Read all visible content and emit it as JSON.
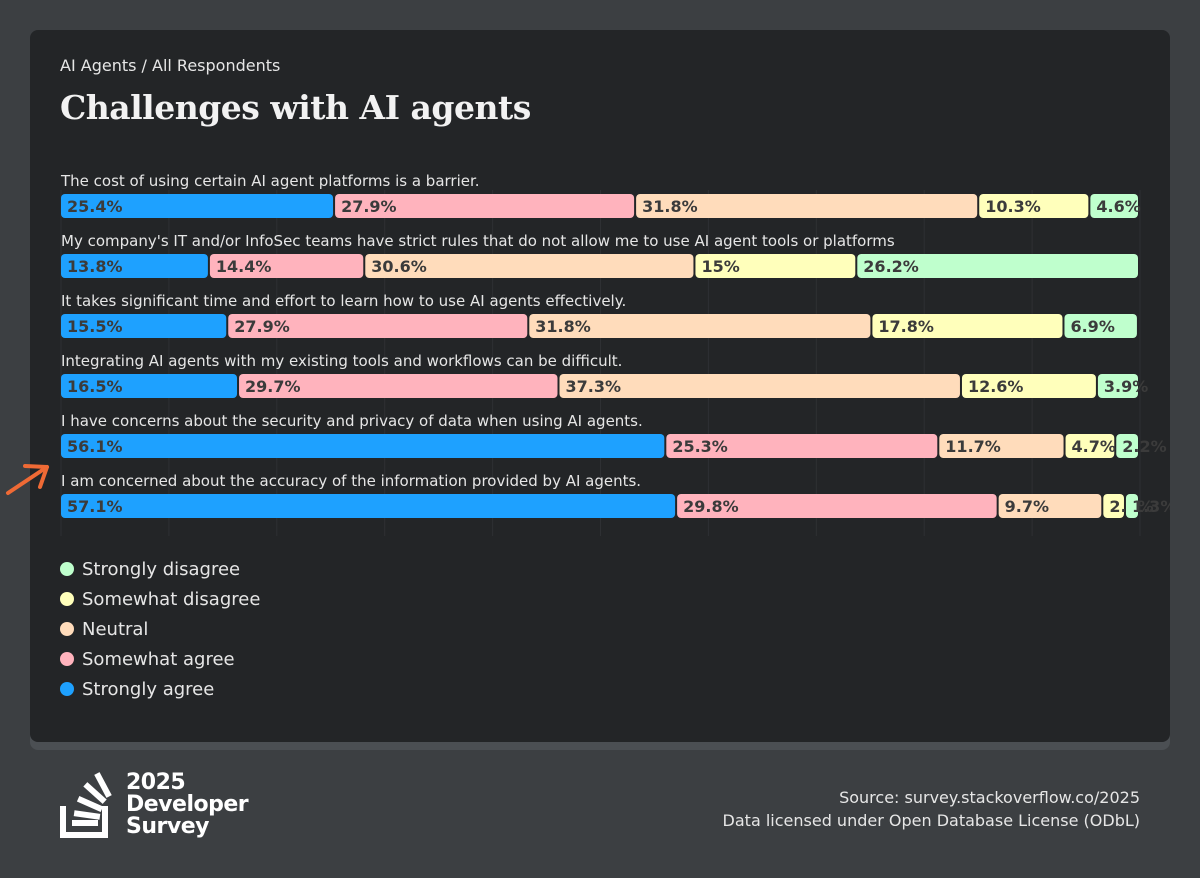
{
  "breadcrumb": "AI Agents / All Respondents",
  "title": "Challenges with AI agents",
  "chart_data": {
    "type": "bar",
    "orientation": "horizontal",
    "stacked": true,
    "unit": "%",
    "legend_position": "bottom-left",
    "categories": [
      "The cost of using certain AI agent platforms is a barrier.",
      "My company's IT and/or InfoSec teams have strict rules that do not allow me to use AI agent tools or platforms",
      "It takes significant time and effort to learn how to use AI agents effectively.",
      "Integrating AI agents with my existing tools and workflows can be difficult.",
      "I have concerns about the security and privacy of data when using AI agents.",
      "I am concerned about the accuracy of the information provided by AI agents."
    ],
    "series": [
      {
        "name": "Strongly agree",
        "color": "#1ea1ff",
        "values": [
          25.4,
          13.8,
          15.5,
          16.5,
          56.1,
          57.1
        ]
      },
      {
        "name": "Somewhat agree",
        "color": "#ffb3bd",
        "values": [
          27.9,
          14.4,
          27.9,
          29.7,
          25.3,
          29.8
        ]
      },
      {
        "name": "Neutral",
        "color": "#ffdcbb",
        "values": [
          31.8,
          30.6,
          31.8,
          37.3,
          11.7,
          9.7
        ]
      },
      {
        "name": "Somewhat disagree",
        "color": "#ffffbb",
        "values": [
          10.3,
          15,
          17.8,
          12.6,
          4.7,
          2.1
        ]
      },
      {
        "name": "Strongly disagree",
        "color": "#bfffcd",
        "values": [
          4.6,
          26.2,
          6.9,
          3.9,
          2.2,
          1.3
        ]
      }
    ],
    "legend_order": [
      "Strongly disagree",
      "Somewhat disagree",
      "Neutral",
      "Somewhat agree",
      "Strongly agree"
    ],
    "xlim": [
      0,
      100
    ]
  },
  "footer": {
    "logo_year": "2025",
    "logo_line1": "Developer",
    "logo_line2": "Survey",
    "source": "Source: survey.stackoverflow.co/2025",
    "license": "Data licensed under Open Database License (ODbL)"
  },
  "colors": {
    "accent_arrow": "#ef6a35",
    "bar_label": "#3b3b3b",
    "gridline": "#2e3033"
  }
}
